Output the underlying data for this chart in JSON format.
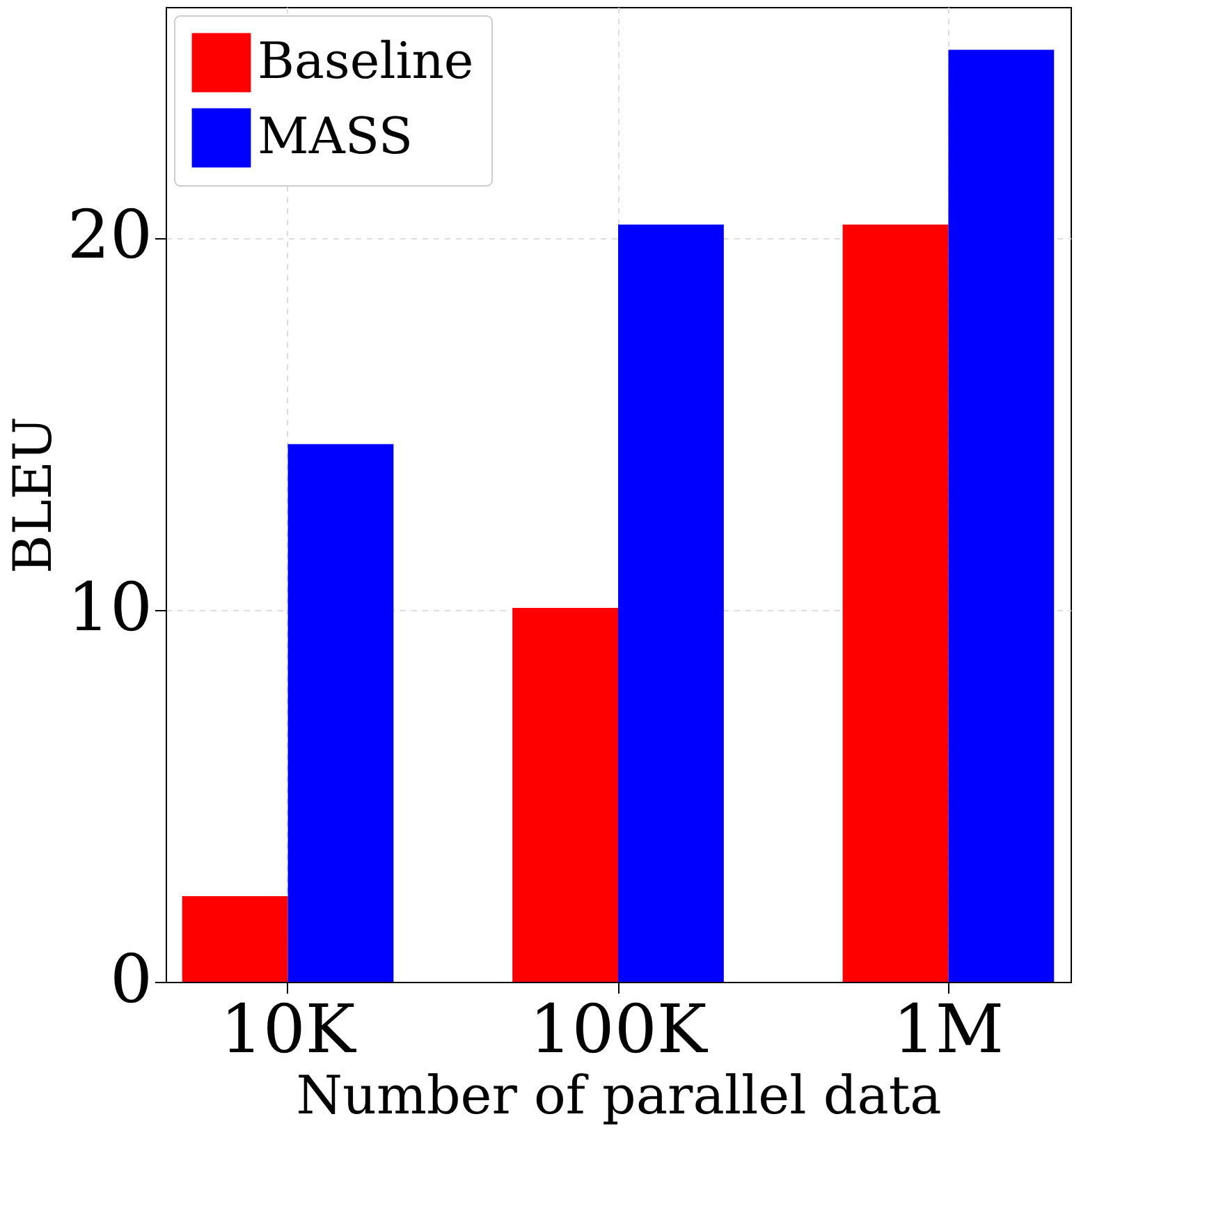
{
  "chart_data": {
    "type": "bar",
    "xlabel": "Number of parallel data",
    "ylabel": "BLEU",
    "categories": [
      "10K",
      "100K",
      "1M"
    ],
    "series": [
      {
        "name": "Baseline",
        "color": "#ff0000",
        "values": [
          2.3,
          10.05,
          20.35
        ]
      },
      {
        "name": "MASS",
        "color": "#0000ff",
        "values": [
          14.45,
          20.35,
          25.05
        ]
      }
    ],
    "ylim": [
      0,
      26.2
    ],
    "yticks": [
      0,
      10,
      20
    ],
    "grid": true,
    "legend": "top left"
  }
}
